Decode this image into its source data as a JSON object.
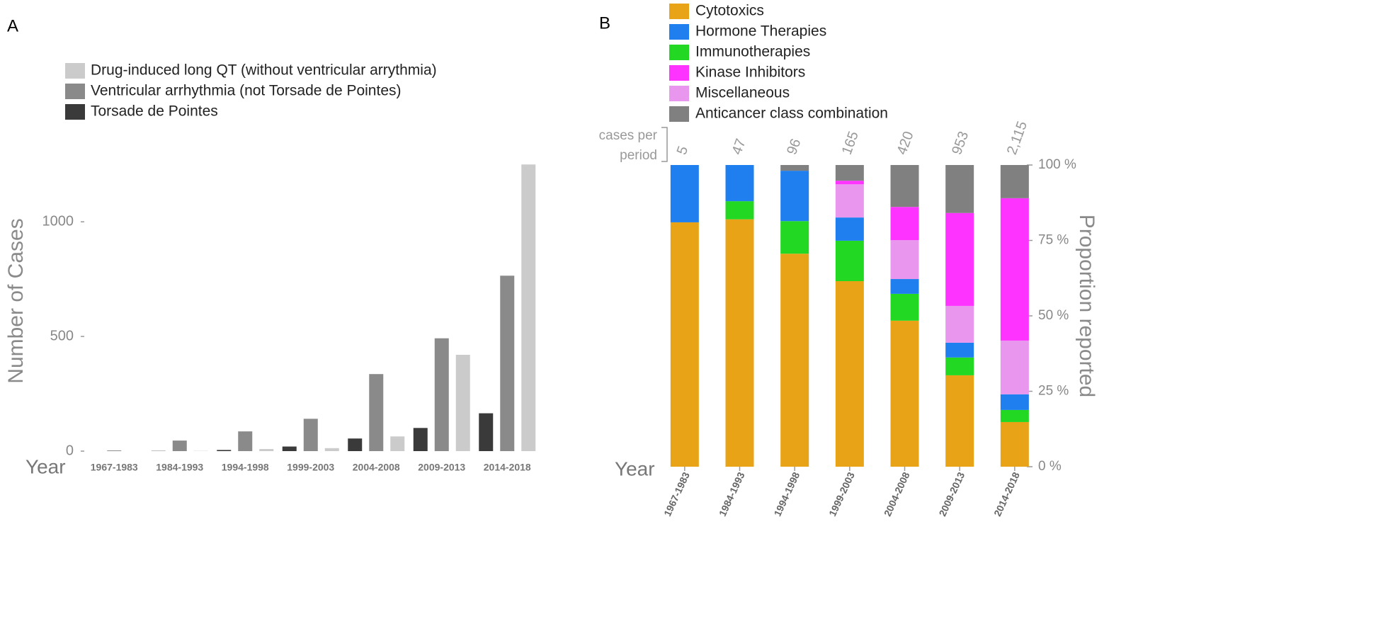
{
  "chart_data": [
    {
      "type": "bar",
      "panel": "A",
      "ylabel": "Number of Cases",
      "xlabel": "Year",
      "categories": [
        "1967-1983",
        "1984-1993",
        "1994-1998",
        "1999-2003",
        "2004-2008",
        "2009-2013",
        "2014-2018"
      ],
      "series": [
        {
          "name": "Torsade de Pointes",
          "color": "#3a3a3a",
          "values": [
            0,
            1,
            5,
            20,
            55,
            101,
            165
          ]
        },
        {
          "name": "Ventricular arrhythmia (not Torsade de Pointes)",
          "color": "#8a8a8a",
          "values": [
            3,
            46,
            86,
            141,
            336,
            492,
            765
          ]
        },
        {
          "name": "Drug-induced long QT (without ventricular arrythmia)",
          "color": "#cbcbcb",
          "values": [
            0,
            1,
            9,
            13,
            64,
            420,
            1250
          ]
        }
      ],
      "ylim": [
        0,
        1260
      ],
      "yticks": [
        0,
        500,
        1000
      ]
    },
    {
      "type": "stacked_bar",
      "panel": "B",
      "ylabel": "Proportion reported",
      "xlabel": "Year",
      "cases_label": [
        "cases per",
        "period"
      ],
      "cases": {
        "values": [
          5,
          47,
          96,
          165,
          420,
          953,
          2115
        ],
        "value_labels": [
          "5",
          "47",
          "96",
          "165",
          "420",
          "953",
          "2,115"
        ]
      },
      "categories": [
        "1967-1983",
        "1984-1993",
        "1994-1998",
        "1999-2003",
        "2004-2008",
        "2009-2013",
        "2014-2018"
      ],
      "series": [
        {
          "name": "Cytotoxics",
          "color": "#e8a317",
          "values": [
            81,
            82,
            70.6,
            61.5,
            48.4,
            30.3,
            14.8
          ]
        },
        {
          "name": "Hormone Therapies",
          "color": "#1f7fef",
          "values": [
            19,
            12,
            16.7,
            7.7,
            4.9,
            4.9,
            5.2
          ]
        },
        {
          "name": "Immunotherapies",
          "color": "#22d822",
          "values": [
            0,
            6,
            10.8,
            13.4,
            8.9,
            5.9,
            4.0
          ]
        },
        {
          "name": "Kinase Inhibitors",
          "color": "#ff33ff",
          "values": [
            0,
            0,
            0,
            1.2,
            11.0,
            30.8,
            47.2
          ]
        },
        {
          "name": "Miscellaneous",
          "color": "#e896ee",
          "values": [
            0,
            0,
            0,
            11.0,
            12.9,
            12.2,
            17.8
          ]
        },
        {
          "name": "Anticancer class combination",
          "color": "#808080",
          "values": [
            0,
            0,
            1.9,
            5.2,
            13.9,
            15.9,
            11.0
          ]
        }
      ],
      "ylim": [
        0,
        100
      ],
      "yticks": [
        {
          "value": 0,
          "label": "0 %"
        },
        {
          "value": 25,
          "label": "25 %"
        },
        {
          "value": 50,
          "label": "50 %"
        },
        {
          "value": 75,
          "label": "75 %"
        },
        {
          "value": 100,
          "label": "100 %"
        }
      ]
    }
  ]
}
